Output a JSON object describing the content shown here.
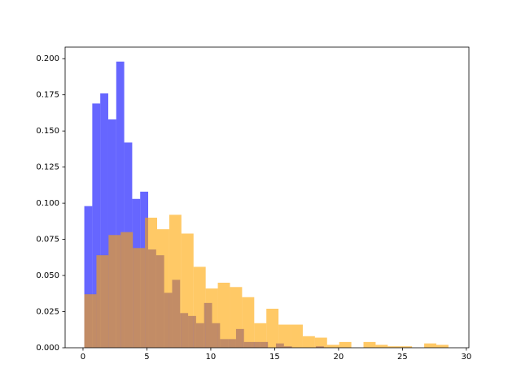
{
  "chart_data": {
    "type": "histogram",
    "xlim": [
      -1.4,
      30.2
    ],
    "ylim": [
      0,
      0.208
    ],
    "xticks": [
      0,
      5,
      10,
      15,
      20,
      25,
      30
    ],
    "yticks": [
      {
        "value": 0,
        "label": "0.000"
      },
      {
        "value": 0.025,
        "label": "0.025"
      },
      {
        "value": 0.05,
        "label": "0.050"
      },
      {
        "value": 0.075,
        "label": "0.075"
      },
      {
        "value": 0.1,
        "label": "0.100"
      },
      {
        "value": 0.125,
        "label": "0.125"
      },
      {
        "value": 0.15,
        "label": "0.150"
      },
      {
        "value": 0.175,
        "label": "0.175"
      },
      {
        "value": 0.2,
        "label": "0.200"
      }
    ],
    "series": [
      {
        "color": "blue",
        "alpha": 0.6,
        "bins": [
          0.1,
          0.725,
          1.35,
          1.975,
          2.6,
          3.225,
          3.85,
          4.475,
          5.1,
          5.725,
          6.35,
          6.975,
          7.6,
          8.225,
          8.85,
          9.475,
          10.1,
          10.725,
          11.35,
          11.975,
          12.6,
          13.225,
          13.85,
          14.475,
          15.1,
          15.725,
          16.35,
          16.975,
          17.6,
          18.225,
          18.85
        ],
        "values": [
          0.098,
          0.169,
          0.176,
          0.158,
          0.198,
          0.142,
          0.103,
          0.108,
          0.068,
          0.064,
          0.038,
          0.047,
          0.024,
          0.022,
          0.017,
          0.031,
          0.017,
          0.006,
          0.006,
          0.013,
          0.004,
          0.004,
          0.004,
          0,
          0.003,
          0.001,
          0,
          0,
          0,
          0.001
        ]
      },
      {
        "color": "orange",
        "alpha": 0.6,
        "bins": [
          0.1,
          1.05,
          2.0,
          2.95,
          3.9,
          4.85,
          5.8,
          6.75,
          7.7,
          8.65,
          9.6,
          10.55,
          11.5,
          12.45,
          13.4,
          14.35,
          15.3,
          16.25,
          17.2,
          18.15,
          19.1,
          20.05,
          21.0,
          21.95,
          22.9,
          23.85,
          24.8,
          25.75,
          26.7,
          27.65,
          28.6
        ],
        "values": [
          0.037,
          0.064,
          0.078,
          0.08,
          0.069,
          0.09,
          0.082,
          0.092,
          0.079,
          0.056,
          0.041,
          0.045,
          0.042,
          0.035,
          0.017,
          0.027,
          0.016,
          0.016,
          0.008,
          0.007,
          0.002,
          0.004,
          0,
          0.004,
          0.002,
          0.001,
          0.001,
          0,
          0.003,
          0.002
        ]
      }
    ]
  }
}
